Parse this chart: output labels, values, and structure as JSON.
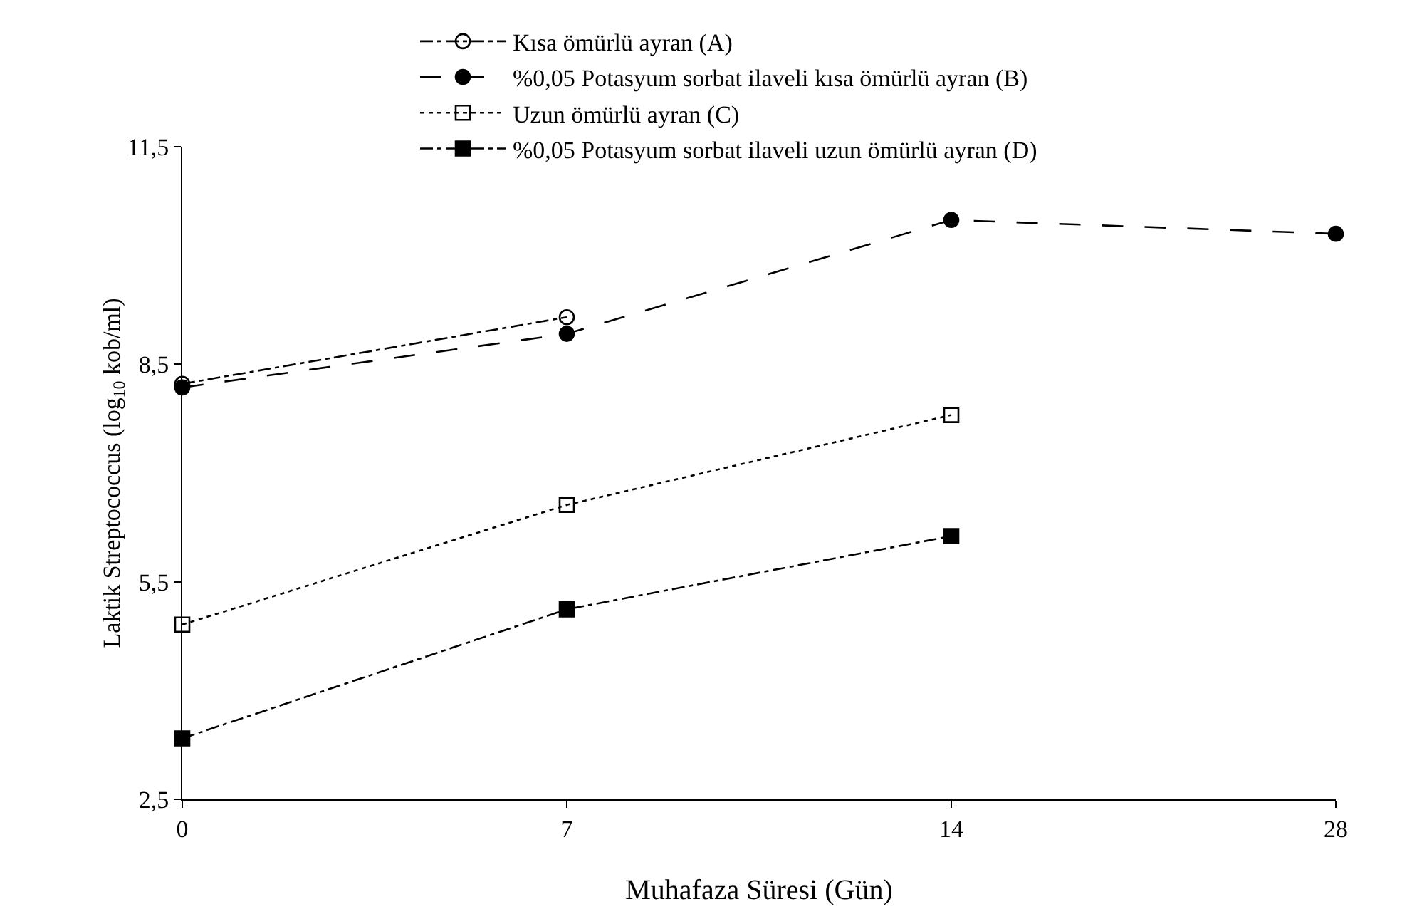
{
  "chart_data": {
    "type": "line",
    "xlabel": "Muhafaza Süresi (Gün)",
    "ylabel": "Laktik Streptococcus (log$_{10}$ kob/ml)",
    "categories": [
      "0",
      "7",
      "14",
      "28"
    ],
    "ylim": [
      2.5,
      11.5
    ],
    "yticks": [
      {
        "value": 2.5,
        "label": "2,5"
      },
      {
        "value": 5.5,
        "label": "5,5"
      },
      {
        "value": 8.5,
        "label": "8,5"
      },
      {
        "value": 11.5,
        "label": "11,5"
      }
    ],
    "grid": false,
    "legend": "top",
    "series": [
      {
        "name": "Kısa ömürlü ayran (A)",
        "color": "#000000",
        "marker": "circle-open",
        "line_style": "dashdot",
        "values": [
          8.23,
          9.15,
          null,
          null
        ]
      },
      {
        "name": "%0,05 Potasyum sorbat ilaveli kısa ömürlü ayran (B)",
        "color": "#000000",
        "marker": "circle",
        "line_style": "longdash",
        "values": [
          8.18,
          8.92,
          10.49,
          10.3
        ]
      },
      {
        "name": "Uzun ömürlü ayran (C)",
        "color": "#000000",
        "marker": "square-open",
        "line_style": "dotted",
        "values": [
          4.91,
          6.56,
          7.8,
          null
        ]
      },
      {
        "name": "%0,05 Potasyum sorbat ilaveli uzun ömürlü ayran (D)",
        "color": "#000000",
        "marker": "square",
        "line_style": "dashdot",
        "values": [
          3.34,
          5.12,
          6.13,
          null
        ]
      }
    ]
  }
}
